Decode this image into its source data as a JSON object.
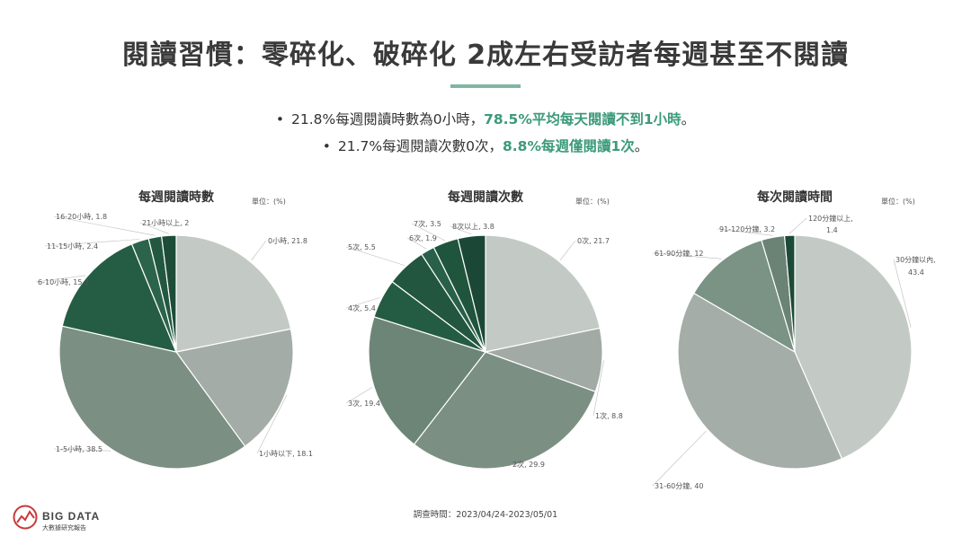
{
  "title": "閱讀習慣：零碎化、破碎化 2成左右受訪者每週甚至不閱讀",
  "bullets": [
    {
      "text": "21.8%每週閱讀時數為0小時，",
      "highlight": "78.5%平均每天閱讀不到1小時",
      "end": "。"
    },
    {
      "text": "21.7%每週閱讀次數0次，",
      "highlight": "8.8%每週僅閱讀1次",
      "end": "。"
    }
  ],
  "unit_label": "單位：(%)",
  "footer": {
    "survey_date": "調查時間：2023/04/24-2023/05/01",
    "logo_main": "BIG DATA",
    "logo_sub": "大數據研究報告"
  },
  "colors": {
    "accent": "#3c9a7a",
    "title_bar": "#7fb7a0",
    "slice_palette": [
      "#c3cac5",
      "#a5ada8",
      "#7b8f83",
      "#7a9384",
      "#2e6a4e",
      "#245c43",
      "#1f543d",
      "#1c4a36"
    ]
  },
  "chart_data": [
    {
      "type": "pie",
      "title": "每週閱讀時數",
      "labels": [
        "0小時",
        "1小時以下",
        "1-5小時",
        "6-10小時",
        "11-15小時",
        "16-20小時",
        "21小時以上"
      ],
      "values": [
        21.8,
        18.1,
        38.5,
        15.2,
        2.4,
        1.8,
        2.0
      ],
      "colors": [
        "#c3cac5",
        "#a4aca7",
        "#7b8f83",
        "#255d44",
        "#2b644a",
        "#235840",
        "#1d4c38"
      ]
    },
    {
      "type": "pie",
      "title": "每週閱讀次數",
      "labels": [
        "0次",
        "1次",
        "2次",
        "3次",
        "4次",
        "5次",
        "6次",
        "7次",
        "8次以上"
      ],
      "values": [
        21.7,
        8.8,
        29.9,
        19.4,
        5.4,
        5.5,
        1.9,
        3.5,
        3.8
      ],
      "colors": [
        "#c3cac5",
        "#a2aaa5",
        "#7b8f83",
        "#6d8577",
        "#245c43",
        "#22563f",
        "#28604a",
        "#1f543d",
        "#1b4836"
      ]
    },
    {
      "type": "pie",
      "title": "每次閱讀時間",
      "labels": [
        "30分鐘以內",
        "31-60分鐘",
        "61-90分鐘",
        "91-120分鐘",
        "120分鐘以上"
      ],
      "values": [
        43.4,
        40.0,
        12.0,
        3.2,
        1.4
      ],
      "colors": [
        "#c3cac5",
        "#a5ada8",
        "#7a9384",
        "#6b8375",
        "#1c4a36"
      ]
    }
  ]
}
